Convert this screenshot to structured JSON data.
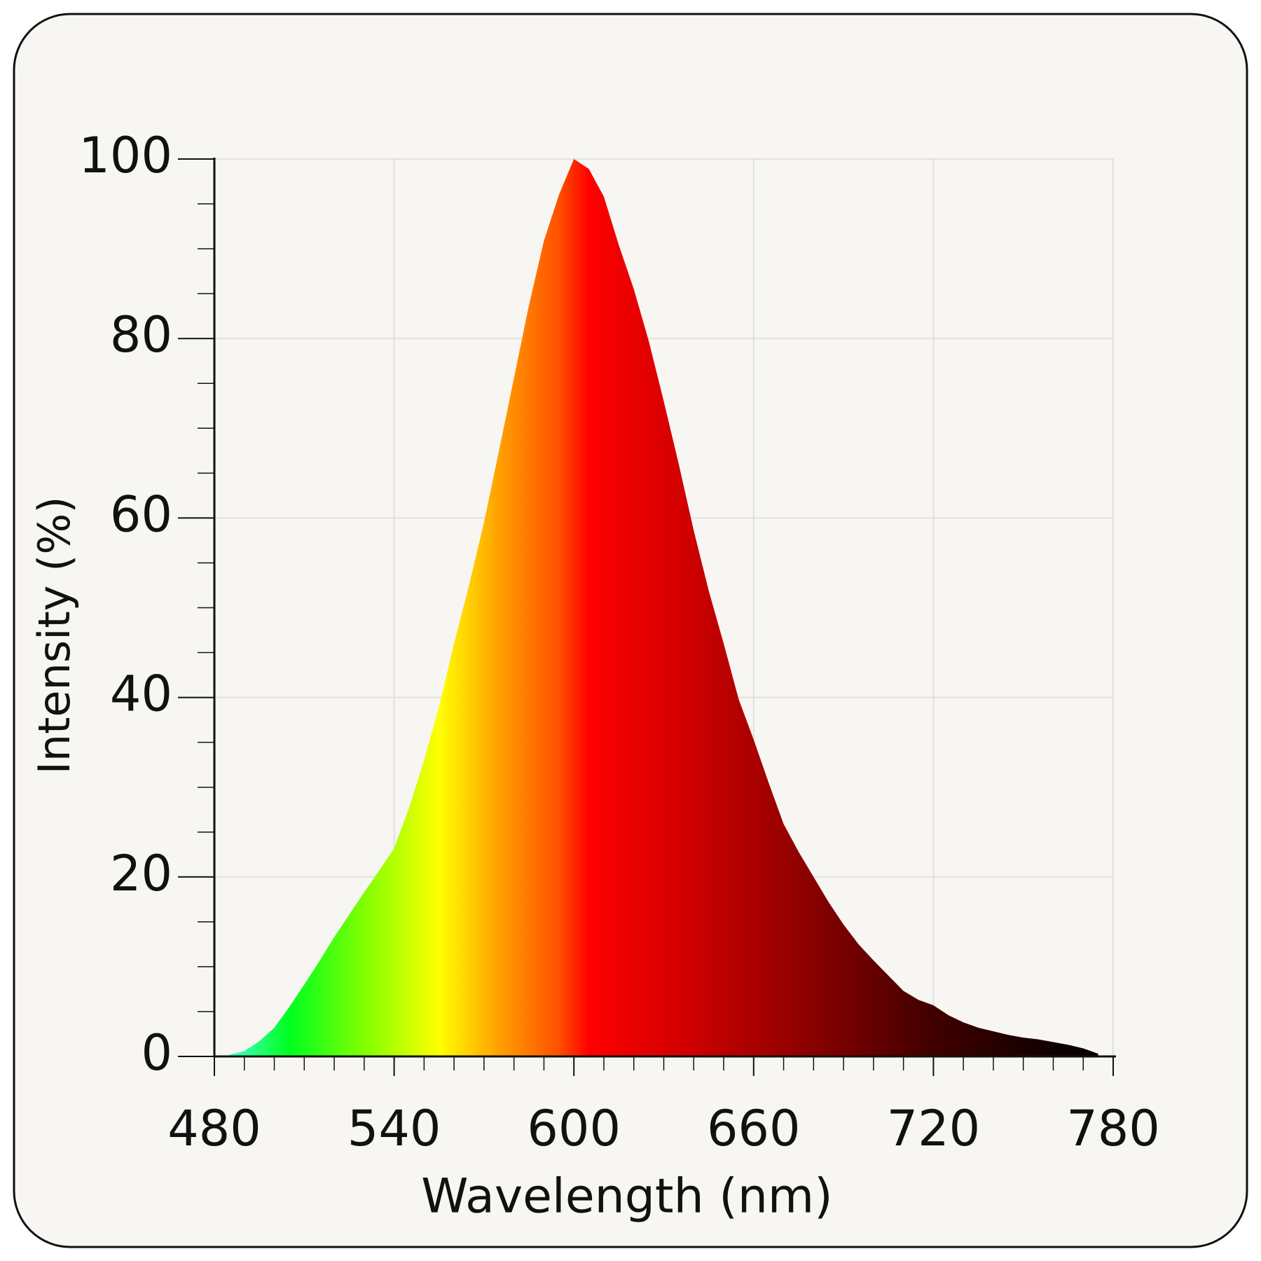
{
  "chart_data": {
    "type": "area",
    "xlabel": "Wavelength (nm)",
    "ylabel": "Intensity (%)",
    "x": [
      485,
      490,
      495,
      500,
      505,
      510,
      515,
      520,
      525,
      530,
      535,
      540,
      545,
      550,
      555,
      560,
      565,
      570,
      575,
      580,
      585,
      590,
      595,
      600,
      605,
      610,
      615,
      620,
      625,
      630,
      635,
      640,
      645,
      650,
      655,
      660,
      665,
      670,
      675,
      680,
      685,
      690,
      695,
      700,
      705,
      710,
      715,
      720,
      725,
      730,
      735,
      740,
      745,
      750,
      755,
      760,
      765,
      770,
      775
    ],
    "values": [
      0.2,
      0.6,
      1.7,
      3.2,
      5.5,
      8,
      10.6,
      13.3,
      15.8,
      18.3,
      20.7,
      23.2,
      27.7,
      33,
      39,
      46,
      52.5,
      59.5,
      67.5,
      75.6,
      83.7,
      90.9,
      96,
      100,
      98.9,
      95.8,
      90.4,
      85.5,
      79.7,
      73,
      66,
      58.6,
      51.9,
      46,
      39.8,
      35.3,
      30.5,
      25.9,
      22.8,
      20,
      17.2,
      14.7,
      12.5,
      10.7,
      9,
      7.3,
      6.3,
      5.7,
      4.6,
      3.8,
      3.2,
      2.8,
      2.4,
      2.1,
      1.9,
      1.6,
      1.3,
      0.9,
      0.3
    ],
    "fill_gradient": [
      {
        "value": 485,
        "color": "#40ffc8"
      },
      {
        "value": 505,
        "color": "#00ff20"
      },
      {
        "value": 530,
        "color": "#80ff00"
      },
      {
        "value": 555,
        "color": "#ffff00"
      },
      {
        "value": 575,
        "color": "#ffa000"
      },
      {
        "value": 595,
        "color": "#ff5000"
      },
      {
        "value": 605,
        "color": "#ff0000"
      },
      {
        "value": 640,
        "color": "#cc0000"
      },
      {
        "value": 680,
        "color": "#880000"
      },
      {
        "value": 720,
        "color": "#400000"
      },
      {
        "value": 760,
        "color": "#100000"
      },
      {
        "value": 780,
        "color": "#000000"
      }
    ],
    "xlim": [
      480,
      780
    ],
    "xticks": [
      480,
      540,
      600,
      660,
      720,
      780
    ],
    "xminorticks": [
      490,
      500,
      510,
      520,
      530,
      550,
      560,
      570,
      580,
      590,
      610,
      620,
      630,
      640,
      650,
      670,
      680,
      690,
      700,
      710,
      730,
      740,
      750,
      760,
      770
    ],
    "ylim": [
      0,
      100
    ],
    "yticks": [
      0,
      20,
      40,
      60,
      80,
      100
    ],
    "yminorticks": [
      5,
      10,
      15,
      25,
      30,
      35,
      45,
      50,
      55,
      65,
      70,
      75,
      85,
      90,
      95
    ],
    "grid": true
  }
}
